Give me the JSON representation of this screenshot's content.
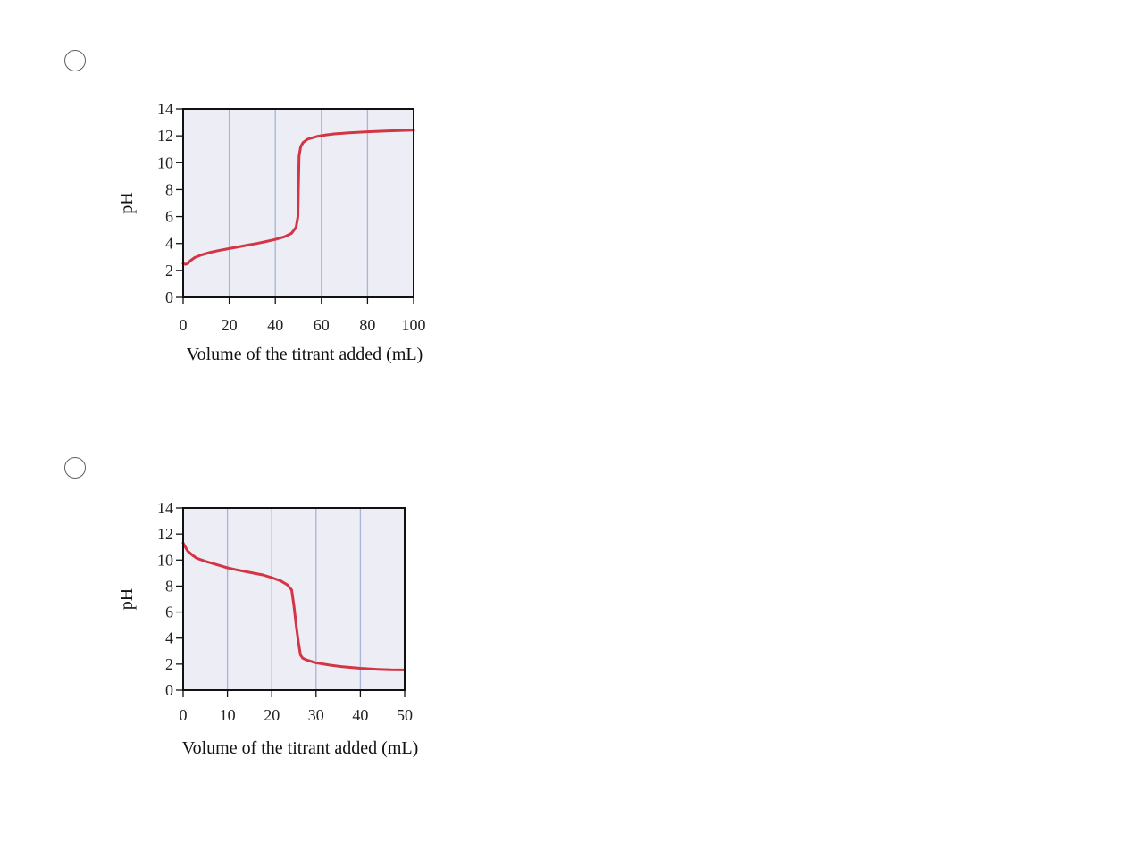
{
  "options": [
    {
      "selected": false,
      "chart_data": {
        "type": "line",
        "title": "",
        "xlabel": "Volume of the titrant added (mL)",
        "ylabel": "pH",
        "xlim": [
          0,
          100
        ],
        "ylim": [
          0,
          14
        ],
        "xticks": [
          0,
          20,
          40,
          60,
          80,
          100
        ],
        "yticks": [
          0,
          2,
          4,
          6,
          8,
          10,
          12,
          14
        ],
        "grid": "vertical",
        "background_color": "#ecedf5",
        "grid_color": "#a9b4d6",
        "line_color": "#d43545",
        "series": [
          {
            "x": [
              0,
              1,
              2,
              3,
              5,
              8,
              12,
              16,
              20,
              24,
              28,
              32,
              36,
              40,
              44,
              47,
              49,
              49.8,
              50,
              50.3,
              51,
              52,
              54,
              58,
              62,
              66,
              72,
              80,
              88,
              95,
              100
            ],
            "y": [
              2.5,
              2.45,
              2.5,
              2.7,
              2.95,
              3.15,
              3.35,
              3.5,
              3.62,
              3.75,
              3.88,
              4.0,
              4.15,
              4.3,
              4.5,
              4.75,
              5.2,
              6.0,
              8.0,
              10.5,
              11.2,
              11.5,
              11.75,
              11.95,
              12.07,
              12.15,
              12.23,
              12.3,
              12.36,
              12.4,
              12.42
            ]
          }
        ]
      }
    },
    {
      "selected": false,
      "chart_data": {
        "type": "line",
        "title": "",
        "xlabel": "Volume of the titrant added (mL)",
        "ylabel": "pH",
        "xlim": [
          0,
          50
        ],
        "ylim": [
          0,
          14
        ],
        "xticks": [
          0,
          10,
          20,
          30,
          40,
          50
        ],
        "yticks": [
          0,
          2,
          4,
          6,
          8,
          10,
          12,
          14
        ],
        "grid": "vertical",
        "background_color": "#ecedf5",
        "grid_color": "#a9b4d6",
        "line_color": "#d43545",
        "series": [
          {
            "x": [
              0,
              0.5,
              1,
              2,
              3,
              5,
              8,
              10,
              12,
              15,
              18,
              20,
              22,
              23.5,
              24.5,
              25,
              25.5,
              26,
              26.5,
              27,
              28,
              30,
              33,
              36,
              40,
              44,
              47,
              50
            ],
            "y": [
              11.3,
              11.0,
              10.7,
              10.4,
              10.15,
              9.9,
              9.6,
              9.4,
              9.25,
              9.05,
              8.85,
              8.65,
              8.4,
              8.1,
              7.7,
              6.5,
              5.0,
              3.7,
              2.7,
              2.45,
              2.3,
              2.1,
              1.93,
              1.8,
              1.68,
              1.6,
              1.56,
              1.55
            ]
          }
        ]
      }
    }
  ]
}
